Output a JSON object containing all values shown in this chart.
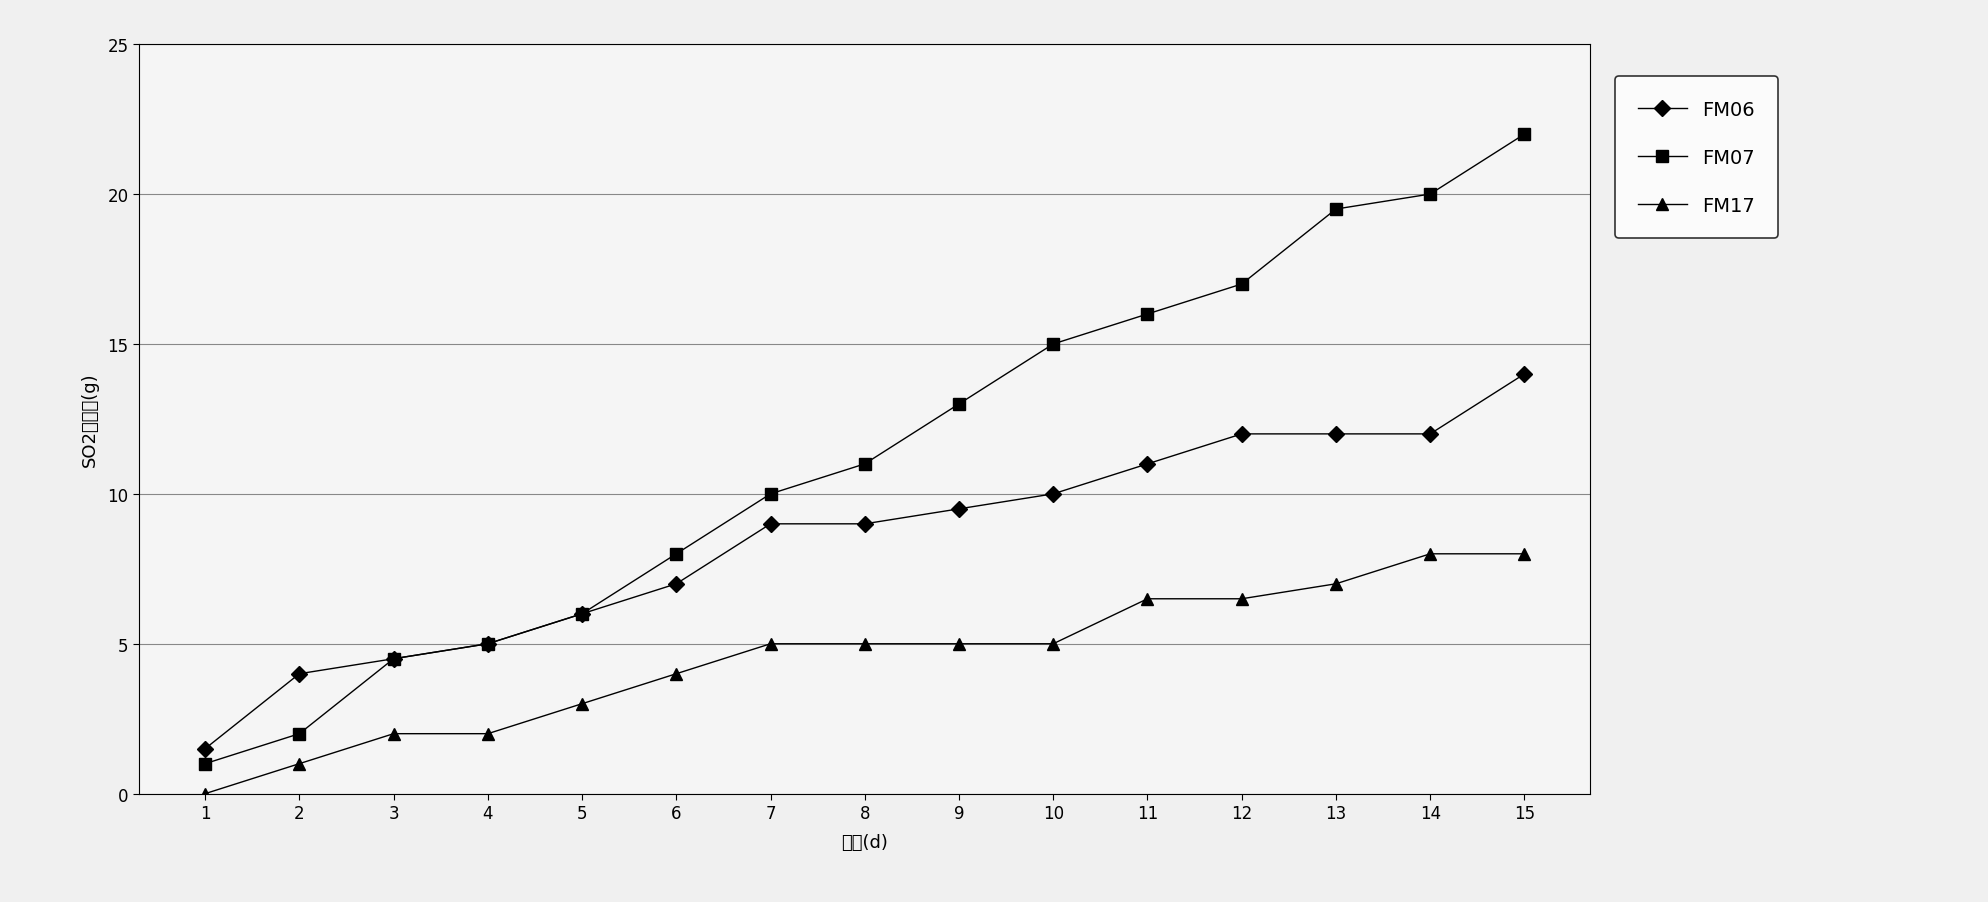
{
  "x": [
    1,
    2,
    3,
    4,
    5,
    6,
    7,
    8,
    9,
    10,
    11,
    12,
    13,
    14,
    15
  ],
  "FM06": [
    1.5,
    4.0,
    4.5,
    5.0,
    6.0,
    7.0,
    9.0,
    9.0,
    9.5,
    10.0,
    11.0,
    12.0,
    12.0,
    12.0,
    14.0
  ],
  "FM07": [
    1.0,
    2.0,
    4.5,
    5.0,
    6.0,
    8.0,
    10.0,
    11.0,
    13.0,
    15.0,
    16.0,
    17.0,
    19.5,
    20.0,
    22.0
  ],
  "FM17": [
    0.0,
    1.0,
    2.0,
    2.0,
    3.0,
    4.0,
    5.0,
    5.0,
    5.0,
    5.0,
    6.5,
    6.5,
    7.0,
    8.0,
    8.0
  ],
  "ylabel": "SO2失去量(g)",
  "xlabel": "时间(d)",
  "ylim": [
    0,
    25
  ],
  "yticks": [
    0,
    5,
    10,
    15,
    20,
    25
  ],
  "xticks": [
    1,
    2,
    3,
    4,
    5,
    6,
    7,
    8,
    9,
    10,
    11,
    12,
    13,
    14,
    15
  ],
  "line_color": "#000000",
  "legend_labels": [
    "FM06",
    "FM07",
    "FM17"
  ],
  "bg_color": "#f0f0f0",
  "plot_bg_color": "#f5f5f5",
  "grid_color": "#888888"
}
